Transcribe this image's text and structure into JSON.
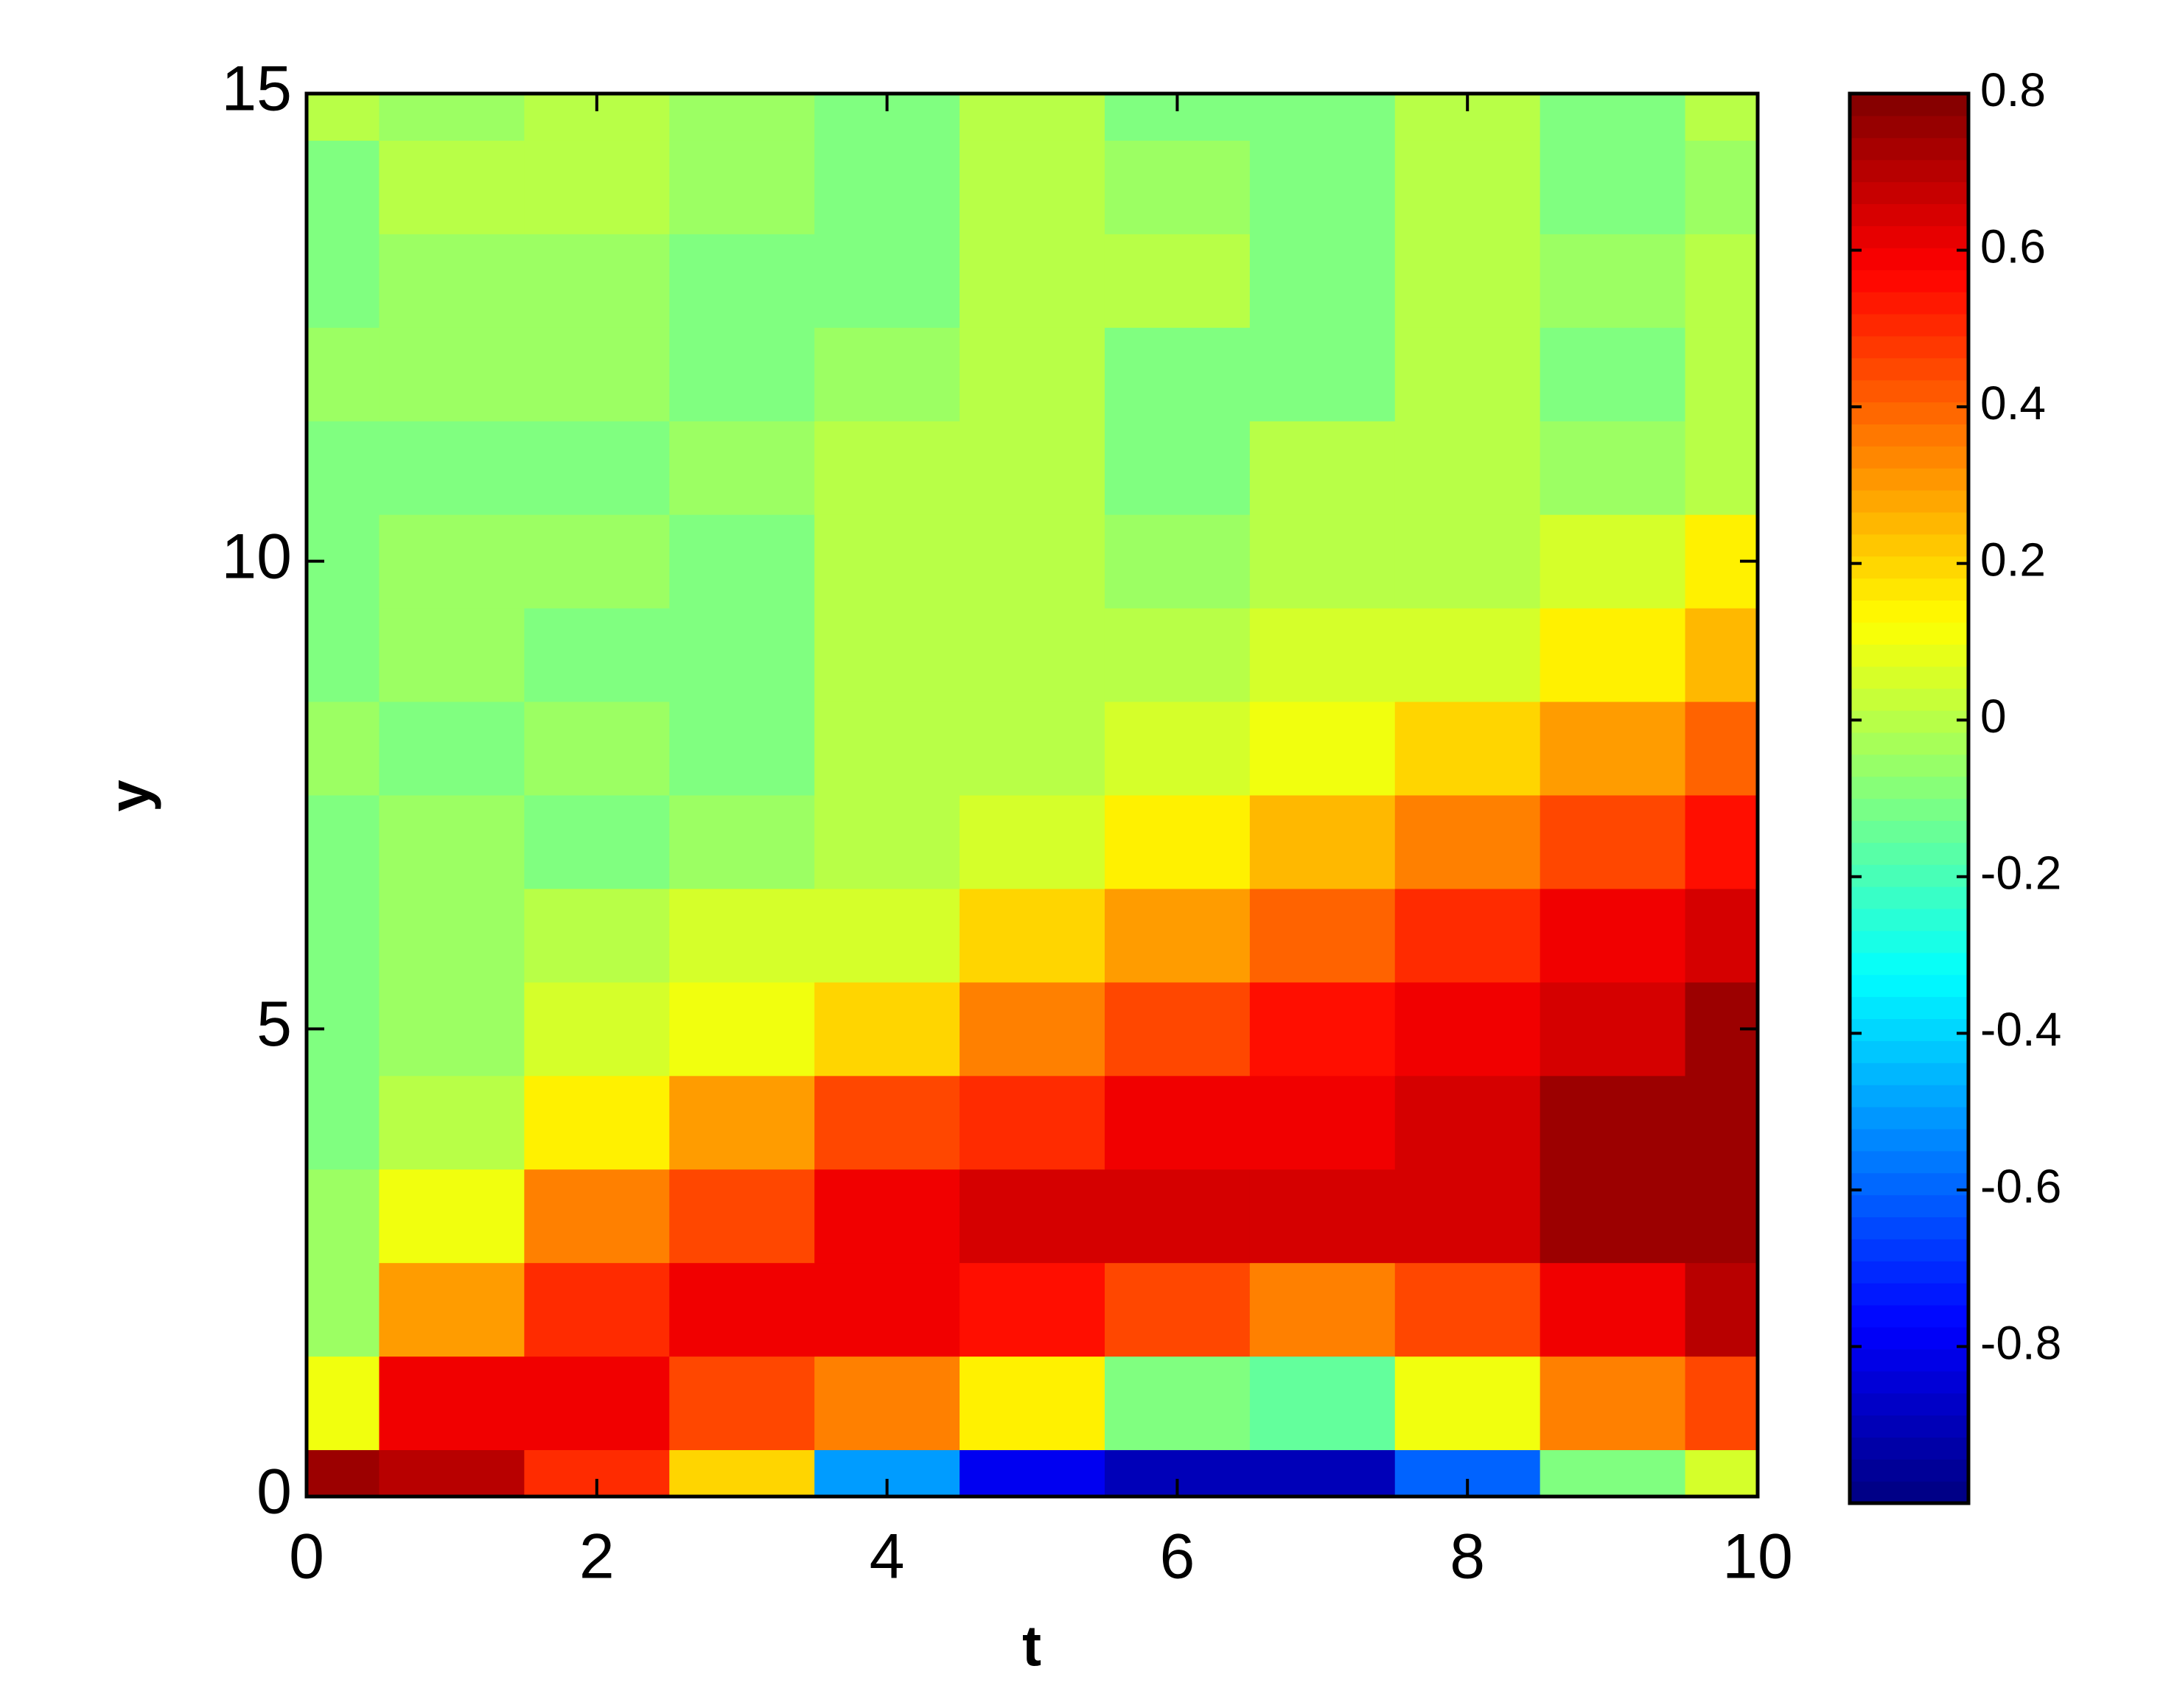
{
  "chart_data": {
    "type": "contour",
    "xlabel": "t",
    "ylabel": "y",
    "x": [
      0,
      1,
      2,
      3,
      4,
      5,
      6,
      7,
      8,
      9,
      10
    ],
    "y": [
      0,
      1,
      2,
      3,
      4,
      5,
      6,
      7,
      8,
      9,
      10,
      11,
      12,
      13,
      14,
      15
    ],
    "z": [
      [
        0.75,
        0.7,
        0.5,
        0.2,
        -0.5,
        -0.8,
        -0.9,
        -0.9,
        -0.6,
        -0.1,
        0.05
      ],
      [
        0.1,
        0.6,
        0.6,
        0.45,
        0.35,
        0.15,
        -0.1,
        -0.15,
        0.1,
        0.35,
        0.45
      ],
      [
        -0.05,
        0.3,
        0.5,
        0.6,
        0.6,
        0.55,
        0.45,
        0.35,
        0.45,
        0.6,
        0.7
      ],
      [
        -0.05,
        0.1,
        0.35,
        0.45,
        0.6,
        0.65,
        0.65,
        0.65,
        0.65,
        0.75,
        0.75
      ],
      [
        -0.1,
        0.0,
        0.15,
        0.3,
        0.45,
        0.5,
        0.6,
        0.6,
        0.65,
        0.75,
        0.75
      ],
      [
        -0.1,
        -0.05,
        0.05,
        0.1,
        0.2,
        0.35,
        0.45,
        0.55,
        0.6,
        0.65,
        0.75
      ],
      [
        -0.1,
        -0.05,
        0,
        0.05,
        0.05,
        0.2,
        0.3,
        0.4,
        0.5,
        0.6,
        0.65
      ],
      [
        -0.1,
        -0.05,
        -0.1,
        -0.05,
        0,
        0.05,
        0.15,
        0.25,
        0.35,
        0.45,
        0.55
      ],
      [
        -0.05,
        -0.1,
        -0.05,
        -0.1,
        0,
        0,
        0.05,
        0.1,
        0.2,
        0.3,
        0.4
      ],
      [
        -0.1,
        -0.05,
        -0.1,
        -0.1,
        0,
        0,
        0,
        0.05,
        0.05,
        0.15,
        0.25
      ],
      [
        -0.1,
        -0.05,
        -0.05,
        -0.1,
        0,
        0,
        -0.05,
        0,
        0,
        0.05,
        0.15
      ],
      [
        -0.1,
        -0.1,
        -0.1,
        -0.05,
        0,
        0,
        -0.1,
        0,
        0,
        -0.05,
        0
      ],
      [
        -0.05,
        -0.05,
        -0.05,
        -0.1,
        -0.05,
        0,
        -0.1,
        -0.1,
        0,
        -0.1,
        0
      ],
      [
        -0.1,
        -0.05,
        -0.05,
        -0.1,
        -0.1,
        0,
        0,
        -0.1,
        0,
        -0.05,
        0
      ],
      [
        -0.1,
        0,
        0,
        -0.05,
        -0.1,
        0,
        -0.05,
        -0.1,
        0,
        -0.1,
        -0.05
      ],
      [
        0,
        -0.05,
        0,
        -0.05,
        -0.1,
        0,
        -0.1,
        -0.1,
        0,
        -0.1,
        0
      ]
    ],
    "colormap": "jet",
    "xlim": [
      0,
      10
    ],
    "ylim": [
      0,
      15
    ],
    "xticks": [
      0,
      2,
      4,
      6,
      8,
      10
    ],
    "yticks": [
      0,
      5,
      10,
      15
    ],
    "clim": [
      -1,
      0.8
    ],
    "cticks": [
      -0.8,
      -0.6,
      -0.4,
      -0.2,
      0,
      0.2,
      0.4,
      0.6,
      0.8
    ]
  }
}
